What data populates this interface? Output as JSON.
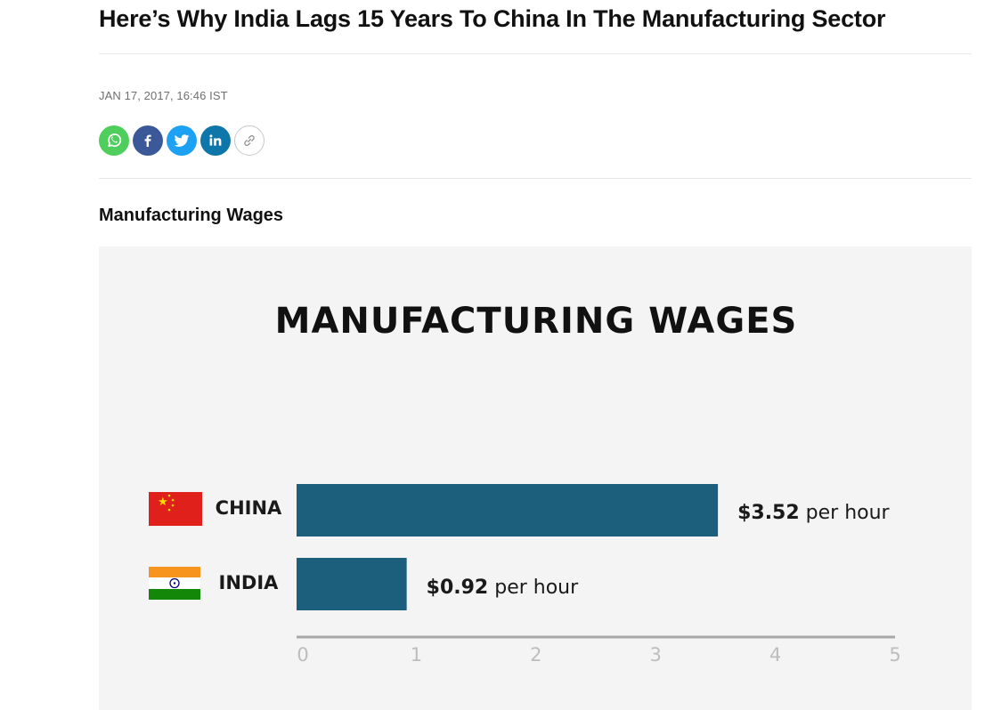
{
  "article": {
    "headline": "Here’s Why India Lags 15 Years To China In The Manufacturing Sector",
    "dateline": "JAN 17, 2017, 16:46 IST",
    "share_buttons": [
      {
        "icon": "whatsapp-icon",
        "color": "#4fce5d"
      },
      {
        "icon": "facebook-icon",
        "color": "#3b5998"
      },
      {
        "icon": "twitter-icon",
        "color": "#1da1f2"
      },
      {
        "icon": "linkedin-icon",
        "color": "#0e76a8"
      },
      {
        "icon": "link-icon",
        "color": "#ffffff"
      }
    ],
    "section_title": "Manufacturing Wages"
  },
  "chart_data": {
    "type": "bar",
    "orientation": "horizontal",
    "title": "MANUFACTURING WAGES",
    "categories": [
      "CHINA",
      "INDIA"
    ],
    "values": [
      3.52,
      0.92
    ],
    "value_labels": [
      {
        "amount": "$3.52",
        "unit": "per hour"
      },
      {
        "amount": "$0.92",
        "unit": "per hour"
      }
    ],
    "xlim": [
      0,
      5
    ],
    "ticks": [
      "0",
      "1",
      "2",
      "3",
      "4",
      "5"
    ],
    "bar_color": "#1b5f7d",
    "background": "#f4f4f4",
    "grid": false,
    "legend": "none",
    "category_icons": [
      "china-flag-icon",
      "india-flag-icon"
    ]
  }
}
